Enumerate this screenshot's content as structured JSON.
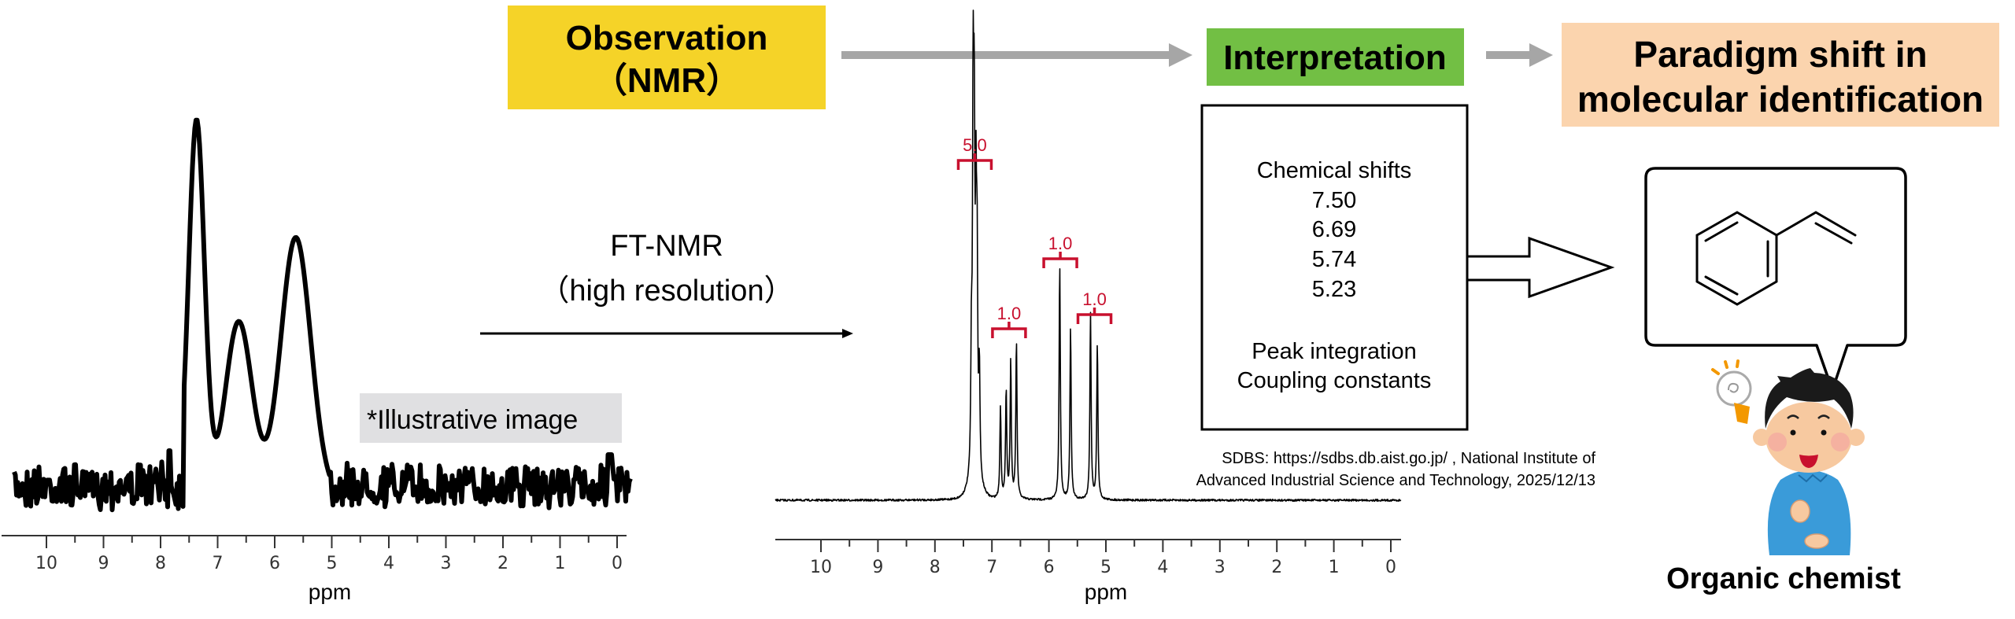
{
  "header": {
    "observation": [
      "Observation",
      "（NMR）"
    ],
    "interpretation": "Interpretation",
    "paradigm": [
      "Paradigm shift in",
      "molecular identification"
    ]
  },
  "colors": {
    "observation_bg": "#F5D328",
    "interpretation_bg": "#72BF44",
    "paradigm_bg": "#FBD4AE",
    "flow_arrow": "#A6A6A6",
    "integration": "#C8102E",
    "note_bg": "#E0E0E2"
  },
  "left_spectrum": {
    "xlabel": "ppm",
    "ticks": [
      "10",
      "9",
      "8",
      "7",
      "6",
      "5",
      "4",
      "3",
      "2",
      "1",
      "0"
    ],
    "note": "*Illustrative image",
    "peaks": [
      {
        "ppm": 7.37,
        "rel_height": 1.0
      },
      {
        "ppm": 6.63,
        "rel_height": 0.45
      },
      {
        "ppm": 5.63,
        "rel_height": 0.68
      }
    ]
  },
  "transition": {
    "line1": "FT-NMR",
    "line2": "（high resolution）"
  },
  "right_spectrum": {
    "xlabel": "ppm",
    "ticks": [
      "10",
      "9",
      "8",
      "7",
      "6",
      "5",
      "4",
      "3",
      "2",
      "1",
      "0"
    ],
    "peaks": [
      {
        "ppm": 7.36,
        "rel_height": 0.33
      },
      {
        "ppm": 7.33,
        "rel_height": 1.0
      },
      {
        "ppm": 7.31,
        "rel_height": 0.85
      },
      {
        "ppm": 7.28,
        "rel_height": 0.65
      },
      {
        "ppm": 7.26,
        "rel_height": 0.55
      },
      {
        "ppm": 7.22,
        "rel_height": 0.3
      },
      {
        "ppm": 6.85,
        "rel_height": 0.26
      },
      {
        "ppm": 6.75,
        "rel_height": 0.31
      },
      {
        "ppm": 6.67,
        "rel_height": 0.39
      },
      {
        "ppm": 6.57,
        "rel_height": 0.45
      },
      {
        "ppm": 5.81,
        "rel_height": 0.67
      },
      {
        "ppm": 5.62,
        "rel_height": 0.49
      },
      {
        "ppm": 5.27,
        "rel_height": 0.53
      },
      {
        "ppm": 5.15,
        "rel_height": 0.44
      }
    ],
    "integrations": [
      {
        "label": "5.0",
        "ppm": 7.3
      },
      {
        "label": "1.0",
        "ppm": 6.7
      },
      {
        "label": "1.0",
        "ppm": 5.8
      },
      {
        "label": "1.0",
        "ppm": 5.2
      }
    ]
  },
  "interpretation_box": {
    "heading": "Chemical shifts",
    "shifts": [
      "7.50",
      "6.69",
      "5.74",
      "5.23"
    ],
    "items": [
      "Peak integration",
      "Coupling constants"
    ]
  },
  "credit": {
    "line1": "SDBS: https://sdbs.db.aist.go.jp/ , National Institute of",
    "line2": "Advanced Industrial Science and Technology, 2025/12/13"
  },
  "chemist_label": "Organic chemist"
}
